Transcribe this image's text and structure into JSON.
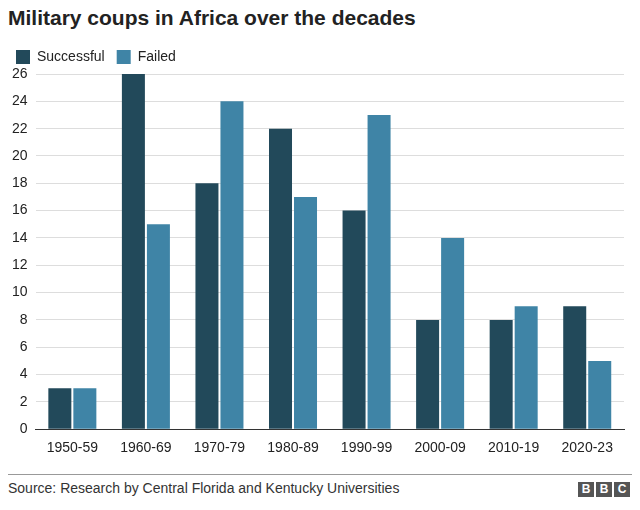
{
  "chart_data": {
    "type": "bar",
    "title": "Military coups in Africa over the decades",
    "categories": [
      "1950-59",
      "1960-69",
      "1970-79",
      "1980-89",
      "1990-99",
      "2000-09",
      "2010-19",
      "2020-23"
    ],
    "series": [
      {
        "name": "Successful",
        "color": "#22495a",
        "values": [
          3,
          26,
          18,
          22,
          16,
          8,
          8,
          9
        ]
      },
      {
        "name": "Failed",
        "color": "#3f84a6",
        "values": [
          3,
          15,
          24,
          17,
          23,
          14,
          9,
          5
        ]
      }
    ],
    "ylim": [
      0,
      26
    ],
    "yticks": [
      0,
      2,
      4,
      6,
      8,
      10,
      12,
      14,
      16,
      18,
      20,
      22,
      24,
      26
    ],
    "grid": true,
    "legend": "top-left",
    "source": "Source: Research by Central Florida and Kentucky Universities",
    "annotations": [
      "BBC"
    ]
  }
}
